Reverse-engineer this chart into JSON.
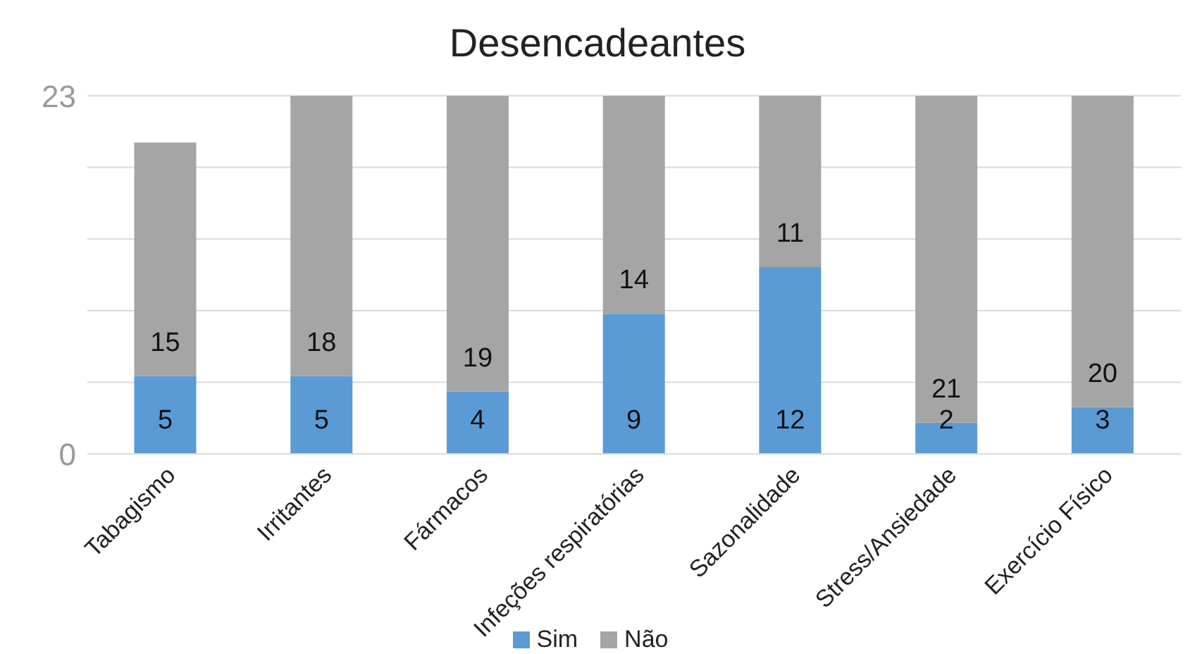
{
  "chart_data": {
    "type": "bar",
    "title": "Desencadeantes",
    "stacked": true,
    "categories": [
      "Tabagismo",
      "Irritantes",
      "Fármacos",
      "Infeções respiratórias",
      "Sazonalidade",
      "Stress/Ansiedade",
      "Exercício Físico"
    ],
    "series": [
      {
        "name": "Sim",
        "color": "#5b9bd5",
        "values": [
          5,
          5,
          4,
          9,
          12,
          2,
          3
        ]
      },
      {
        "name": "Não",
        "color": "#a5a5a5",
        "values": [
          15,
          18,
          19,
          14,
          11,
          21,
          20
        ]
      }
    ],
    "data_labels": true,
    "ylim": [
      0,
      23
    ],
    "yticks": [
      0,
      {
        "value": 4.6,
        "label": null
      },
      {
        "value": 9.2,
        "label": null
      },
      {
        "value": 13.8,
        "label": null
      },
      {
        "value": 18.4,
        "label": null
      },
      23
    ],
    "grid": "y",
    "legend": "bottom"
  }
}
